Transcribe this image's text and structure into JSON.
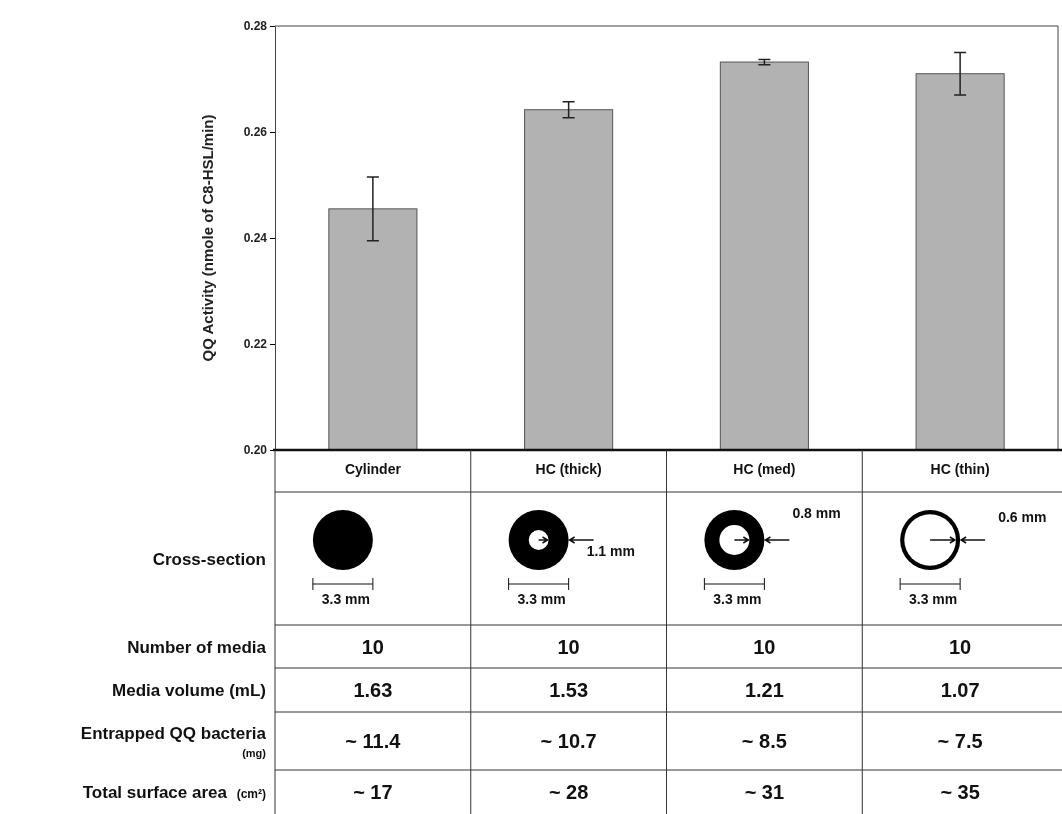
{
  "chart_data": {
    "type": "bar",
    "ylabel": "QQ Activity (nmole of C8-HSL/min)",
    "categories": [
      "Cylinder",
      "HC (thick)",
      "HC (med)",
      "HC (thin)"
    ],
    "values": [
      0.2455,
      0.2642,
      0.2732,
      0.271
    ],
    "errors": [
      0.006,
      0.0015,
      0.0005,
      0.004
    ],
    "color": "#b2b2b2",
    "ylim": [
      0.2,
      0.28
    ],
    "yticks": [
      {
        "value": 0.2,
        "label": "0.20"
      },
      0.22,
      0.24,
      0.26,
      0.28
    ],
    "grid": false,
    "annotations": [
      "Cross-section",
      "3.3 mm",
      "1.1 mm",
      "3.3 mm",
      "0.8 mm",
      "3.3 mm",
      "0.6 mm",
      "3.3 mm",
      "Number of media",
      "10",
      "10",
      "10",
      "10",
      "Media volume (mL)",
      "1.63",
      "1.53",
      "1.21",
      "1.07",
      "Entrapped QQ bacteria",
      "(mg)",
      "~ 11.4",
      "~ 10.7",
      "~ 8.5",
      "~ 7.5",
      "Total surface area",
      "(cm²)",
      "~ 17",
      "~ 28",
      "~ 31",
      "~ 35"
    ]
  }
}
